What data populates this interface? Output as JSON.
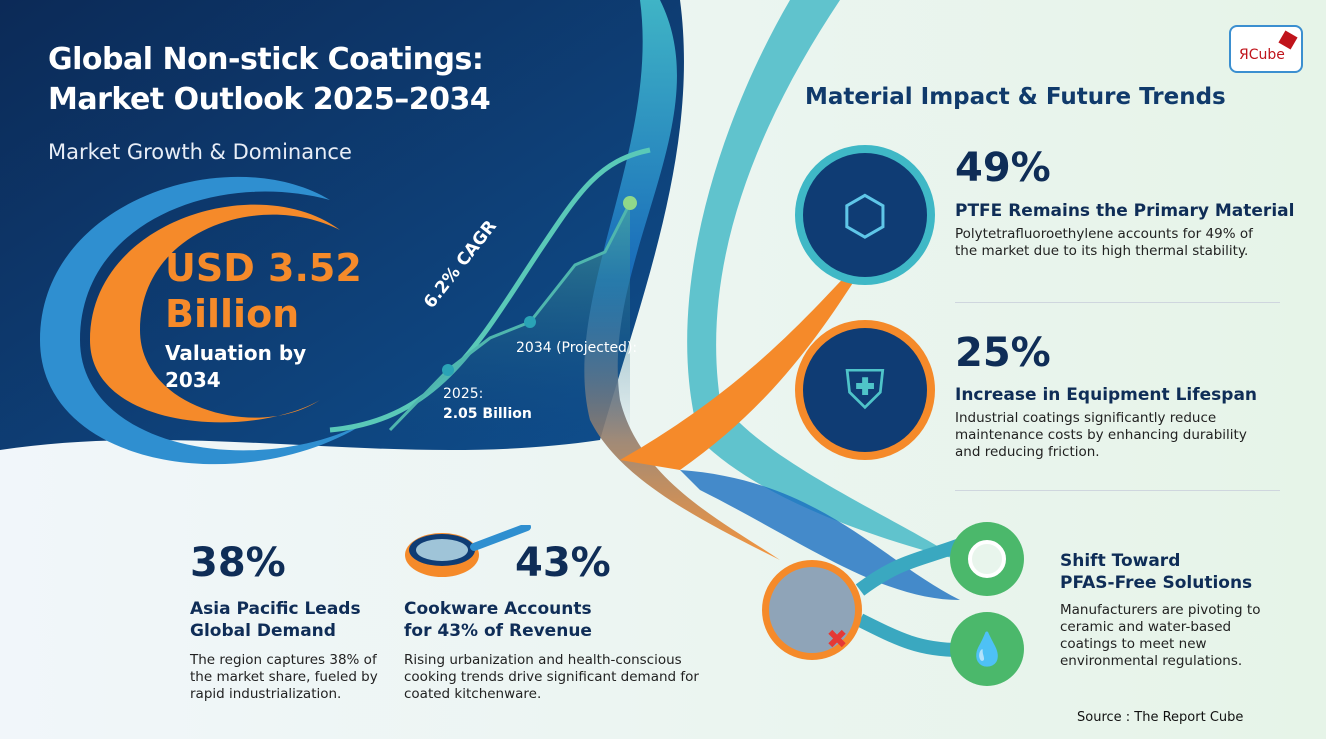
{
  "header": {
    "title_line1": "Global Non-stick Coatings:",
    "title_line2": "Market Outlook 2025–2034",
    "subtitle": "Market Growth & Dominance"
  },
  "hero": {
    "value_line1": "USD 3.52",
    "value_line2": "Billion",
    "caption_line1": "Valuation by",
    "caption_line2": "2034",
    "cagr": "6.2% CAGR",
    "point_2025_label": "2025:",
    "point_2025_value": "2.05 Billion",
    "point_2034_label": "2034 (Projected):"
  },
  "right": {
    "heading": "Material Impact & Future Trends",
    "items": [
      {
        "stat": "49%",
        "title": "PTFE Remains the Primary Material",
        "desc": "Polytetrafluoroethylene accounts for 49% of the market due to its high thermal stability."
      },
      {
        "stat": "25%",
        "title": "Increase in Equipment Lifespan",
        "desc": "Industrial coatings significantly reduce maintenance costs by enhancing durability and reducing friction."
      },
      {
        "stat": "",
        "title_line1": "Shift Toward",
        "title_line2": "PFAS-Free Solutions",
        "desc": "Manufacturers are pivoting to ceramic and water-based coatings to meet new environmental regulations."
      }
    ]
  },
  "bottom": [
    {
      "stat": "38%",
      "title_line1": "Asia Pacific Leads",
      "title_line2": "Global Demand",
      "desc": "The region captures 38% of the market share, fueled by rapid industrialization."
    },
    {
      "stat": "43%",
      "title_line1": "Cookware Accounts",
      "title_line2": "for 43% of Revenue",
      "desc": "Rising urbanization and health-conscious cooking trends drive significant demand for coated kitchenware."
    }
  ],
  "logo": {
    "text": "ЯCube"
  },
  "source": "Source : The Report Cube",
  "colors": {
    "navy": "#0d3466",
    "orange": "#f58a2a",
    "teal": "#39b6c9",
    "green": "#5cc27a"
  },
  "icons": [
    "molecule-icon",
    "shield-gear-icon",
    "cracked-pan-prohibited-icon",
    "ceramic-plate-icon",
    "water-drop-icon",
    "frying-pan-icon"
  ]
}
